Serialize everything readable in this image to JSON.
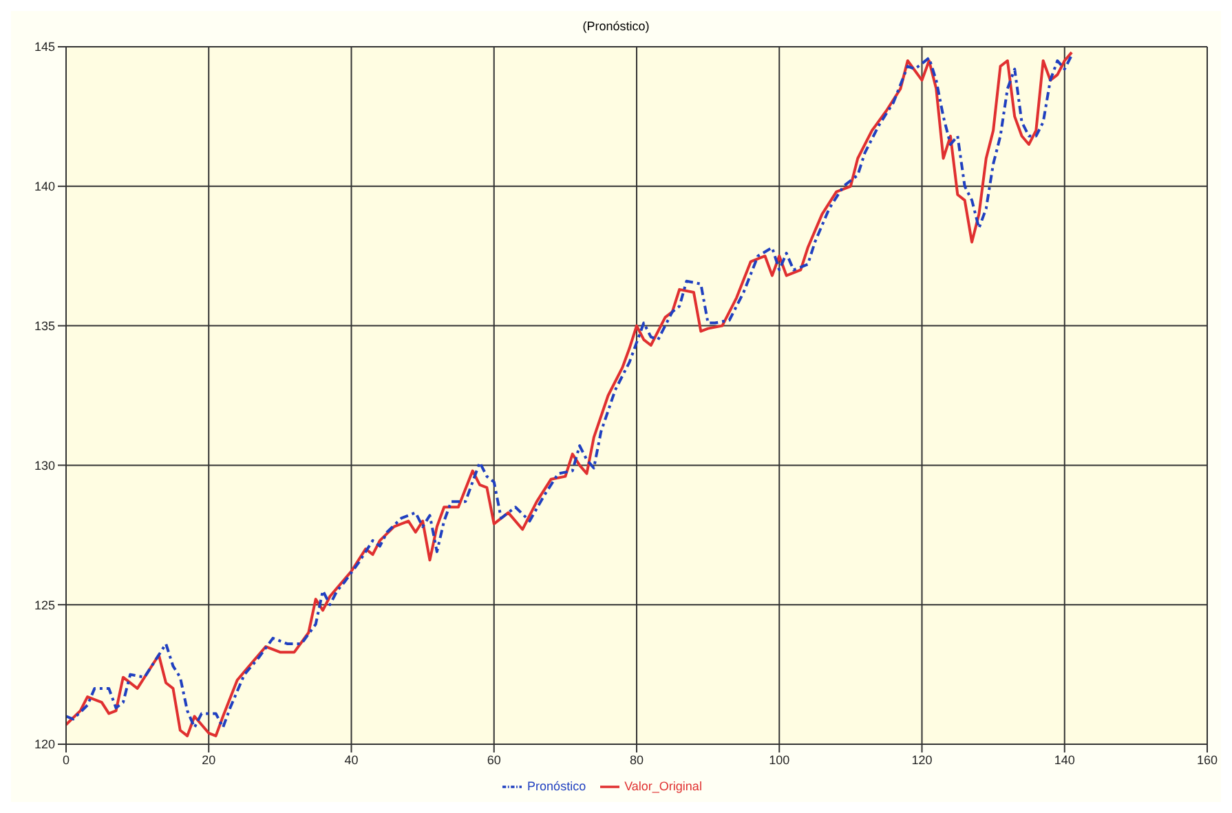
{
  "chart_data": {
    "type": "line",
    "title": "(Pronóstico)",
    "xlim": [
      0,
      160
    ],
    "xticks": [
      0,
      20,
      40,
      60,
      80,
      100,
      120,
      140,
      160
    ],
    "ylim": [
      120,
      145
    ],
    "yticks": [
      120,
      125,
      130,
      135,
      140,
      145
    ],
    "grid": true,
    "legend": "bottom",
    "marker": "none",
    "series": [
      {
        "name": "Valor_Original",
        "color": "#e03030",
        "line_style": "solid",
        "x": [
          0,
          2,
          3,
          5,
          6,
          7,
          8,
          10,
          13,
          14,
          15,
          16,
          17,
          18,
          20,
          21,
          22,
          24,
          26,
          28,
          30,
          32,
          34,
          35,
          36,
          37,
          38,
          40,
          42,
          43,
          44,
          46,
          48,
          49,
          50,
          51,
          52,
          53,
          55,
          57,
          58,
          59,
          60,
          62,
          64,
          66,
          68,
          70,
          71,
          72,
          73,
          74,
          76,
          78,
          79,
          80,
          81,
          82,
          84,
          85,
          86,
          88,
          89,
          90,
          92,
          94,
          96,
          98,
          99,
          100,
          101,
          103,
          104,
          106,
          108,
          110,
          111,
          113,
          115,
          117,
          118,
          120,
          121,
          122,
          123,
          124,
          125,
          126,
          127,
          128,
          129,
          130,
          131,
          132,
          133,
          134,
          135,
          136,
          137,
          138,
          139,
          140,
          141
        ],
        "values": [
          120.7,
          121.2,
          121.7,
          121.5,
          121.1,
          121.2,
          122.4,
          122.0,
          123.2,
          122.2,
          122.0,
          120.5,
          120.3,
          121.0,
          120.4,
          120.3,
          121.0,
          122.3,
          122.9,
          123.5,
          123.3,
          123.3,
          124.0,
          125.2,
          124.8,
          125.3,
          125.6,
          126.2,
          127.0,
          126.8,
          127.3,
          127.8,
          128.0,
          127.6,
          128.0,
          126.6,
          127.8,
          128.5,
          128.5,
          129.8,
          129.3,
          129.2,
          127.9,
          128.3,
          127.7,
          128.7,
          129.5,
          129.6,
          130.4,
          130.0,
          129.7,
          131.0,
          132.5,
          133.5,
          134.2,
          135.0,
          134.5,
          134.3,
          135.3,
          135.5,
          136.3,
          136.2,
          134.8,
          134.9,
          135.0,
          136.0,
          137.3,
          137.5,
          136.8,
          137.5,
          136.8,
          137.0,
          137.8,
          139.0,
          139.8,
          140.0,
          141.0,
          142.0,
          142.7,
          143.5,
          144.5,
          143.8,
          144.5,
          143.5,
          141.0,
          141.8,
          139.7,
          139.5,
          138.0,
          139.0,
          141.0,
          142.0,
          144.3,
          144.5,
          142.5,
          141.8,
          141.5,
          142.0,
          144.5,
          143.8,
          144.0,
          144.5,
          144.8
        ]
      },
      {
        "name": "Pronóstico",
        "color": "#2040c0",
        "line_style": "dashed",
        "x": [
          0,
          1,
          3,
          4,
          6,
          7,
          8,
          9,
          11,
          14,
          15,
          16,
          17,
          18,
          19,
          21,
          22,
          23,
          25,
          27,
          29,
          31,
          33,
          35,
          36,
          37,
          38,
          39,
          41,
          43,
          44,
          45,
          47,
          49,
          50,
          51,
          52,
          53,
          54,
          56,
          58,
          59,
          60,
          61,
          63,
          65,
          67,
          69,
          71,
          72,
          73,
          74,
          75,
          77,
          79,
          80,
          81,
          82,
          83,
          85,
          86,
          87,
          89,
          90,
          91,
          93,
          95,
          97,
          99,
          100,
          101,
          102,
          104,
          105,
          107,
          109,
          111,
          112,
          114,
          116,
          118,
          119,
          121,
          122,
          123,
          124,
          125,
          126,
          127,
          128,
          129,
          130,
          131,
          132,
          133,
          134,
          135,
          136,
          137,
          138,
          139,
          140,
          141
        ],
        "values": [
          121.0,
          120.9,
          121.4,
          122.0,
          122.0,
          121.3,
          121.5,
          122.5,
          122.4,
          123.6,
          122.8,
          122.4,
          121.2,
          120.6,
          121.1,
          121.1,
          120.6,
          121.3,
          122.5,
          123.1,
          123.8,
          123.6,
          123.6,
          124.3,
          125.5,
          125.0,
          125.5,
          125.8,
          126.5,
          127.3,
          127.1,
          127.6,
          128.1,
          128.3,
          127.8,
          128.2,
          126.9,
          128.0,
          128.7,
          128.7,
          130.1,
          129.6,
          129.4,
          128.1,
          128.5,
          128.0,
          128.9,
          129.7,
          129.8,
          130.7,
          130.2,
          129.9,
          131.2,
          132.7,
          133.7,
          134.4,
          135.1,
          134.6,
          134.5,
          135.5,
          135.7,
          136.6,
          136.5,
          135.1,
          135.1,
          135.2,
          136.2,
          137.5,
          137.8,
          137.0,
          137.6,
          137.0,
          137.2,
          138.0,
          139.2,
          140.0,
          140.4,
          141.2,
          142.2,
          143.0,
          144.3,
          144.2,
          144.6,
          143.8,
          142.5,
          141.5,
          141.8,
          140.0,
          139.5,
          138.5,
          139.2,
          140.8,
          141.8,
          143.5,
          144.2,
          142.3,
          141.8,
          141.8,
          142.3,
          143.8,
          144.5,
          144.2,
          144.7
        ]
      }
    ]
  }
}
